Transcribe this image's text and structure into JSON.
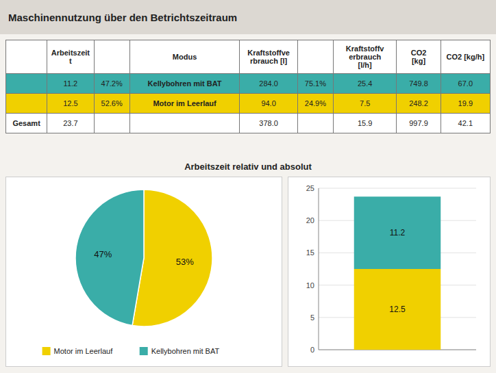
{
  "chart_data": [
    {
      "type": "table",
      "title": "Maschinennutzung über den Betrichtszeitraum",
      "columns": [
        null,
        "Arbeitszeit\nt",
        null,
        "Modus",
        "Kraftstoffve\nrbrauch [l]",
        null,
        "Kraftstoffv\nerbrauch\n[l/h]",
        "CO2\n[kg]",
        "CO2 [kg/h]"
      ],
      "rows": [
        [
          null,
          "11.2",
          "47.2%",
          "Kellybohren mit BAT",
          "284.0",
          "75.1%",
          "25.4",
          "749.8",
          "67.0"
        ],
        [
          null,
          "12.5",
          "52.6%",
          "Motor im Leerlauf",
          "94.0",
          "24.9%",
          "7.5",
          "248.2",
          "19.9"
        ],
        [
          "Gesamt",
          "23.7",
          null,
          null,
          "378.0",
          null,
          "15.9",
          "997.9",
          "42.1"
        ]
      ],
      "colors": [
        "#3aada8",
        "#f0d000",
        "#ffffff"
      ]
    },
    {
      "type": "pie",
      "subtitle": "Arbeitszeit relativ und absolut",
      "categories": [
        "Motor im Leerlauf",
        "Kellybohren mit BAT"
      ],
      "values": [
        52.6,
        47.2
      ],
      "value_labels": [
        "53%",
        "47%"
      ],
      "colors": [
        "#f0d000",
        "#3aada8"
      ],
      "data_labels": true,
      "legend": "bottom"
    },
    {
      "type": "bar",
      "categories": [
        null
      ],
      "series": [
        {
          "color": "#f0d000",
          "values": [
            12.5
          ]
        },
        {
          "color": "#3aada8",
          "values": [
            11.2
          ]
        }
      ],
      "stacked": true,
      "data_labels": true,
      "ylim": [
        0,
        25
      ],
      "yticks": [
        0,
        5,
        10,
        15,
        20,
        25
      ],
      "grid": true,
      "tick_labels": "y"
    }
  ]
}
